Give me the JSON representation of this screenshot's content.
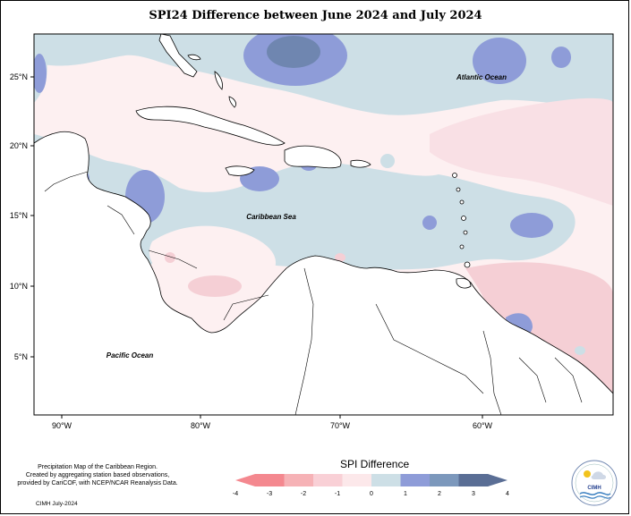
{
  "title": "SPI24 Difference between June 2024 and July 2024",
  "map": {
    "labels": {
      "atlantic": "Atlantic Ocean",
      "caribbean": "Caribbean Sea",
      "pacific": "Pacific Ocean"
    },
    "lat_ticks": [
      "25°N",
      "20°N",
      "15°N",
      "10°N",
      "5°N"
    ],
    "lon_ticks": [
      "90°W",
      "80°W",
      "70°W",
      "60°W"
    ],
    "colors": {
      "ocean_light_blue": "#cddfe6",
      "light_pink": "#f9e0e5",
      "pale_pink": "#fdf0f1",
      "pink": "#f5cfd5",
      "blue": "#8e9cd8",
      "blue_dark": "#6f86b0"
    }
  },
  "caption": {
    "line1": "Precipitation Map of the Caribbean Region.",
    "line2": "Created by aggregating station based observations,",
    "line3": "provided by CariCOF, with NCEP/NCAR Reanalysis Data."
  },
  "footer": "CIMH July-2024",
  "legend": {
    "title": "SPI Difference",
    "ticks": [
      "-4",
      "-3",
      "-2",
      "-1",
      "0",
      "1",
      "2",
      "3",
      "4"
    ],
    "colors": [
      "#f4888f",
      "#f6b2b6",
      "#f9d0d6",
      "#fce8ea",
      "#cddfe6",
      "#8e9cd8",
      "#7c98bc",
      "#5a6e95"
    ]
  },
  "logo": {
    "text": "CIMH"
  }
}
